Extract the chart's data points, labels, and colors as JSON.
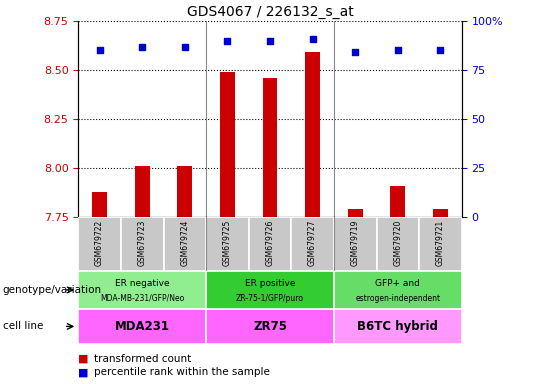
{
  "title": "GDS4067 / 226132_s_at",
  "samples": [
    "GSM679722",
    "GSM679723",
    "GSM679724",
    "GSM679725",
    "GSM679726",
    "GSM679727",
    "GSM679719",
    "GSM679720",
    "GSM679721"
  ],
  "bar_values": [
    7.88,
    8.01,
    8.01,
    8.49,
    8.46,
    8.59,
    7.79,
    7.91,
    7.79
  ],
  "percentile_values": [
    85,
    87,
    87,
    90,
    90,
    91,
    84,
    85,
    85
  ],
  "ylim_left": [
    7.75,
    8.75
  ],
  "ylim_right": [
    0,
    100
  ],
  "yticks_left": [
    7.75,
    8.0,
    8.25,
    8.5,
    8.75
  ],
  "yticks_right": [
    0,
    25,
    50,
    75,
    100
  ],
  "bar_color": "#CC0000",
  "dot_color": "#0000CC",
  "groups": [
    {
      "label_top": "ER negative",
      "label_bot": "MDA-MB-231/GFP/Neo",
      "cell_line": "MDA231",
      "indices": [
        0,
        1,
        2
      ],
      "geno_color": "#90EE90",
      "cell_color": "#FF66FF"
    },
    {
      "label_top": "ER positive",
      "label_bot": "ZR-75-1/GFP/puro",
      "cell_line": "ZR75",
      "indices": [
        3,
        4,
        5
      ],
      "geno_color": "#33CC33",
      "cell_color": "#FF66FF"
    },
    {
      "label_top": "GFP+ and",
      "label_bot": "estrogen-independent",
      "cell_line": "B6TC hybrid",
      "indices": [
        6,
        7,
        8
      ],
      "geno_color": "#66DD66",
      "cell_color": "#FF99FF"
    }
  ],
  "left_axis_color": "#CC0000",
  "right_axis_color": "#0000CC",
  "legend_items": [
    "transformed count",
    "percentile rank within the sample"
  ],
  "baseline": 7.75,
  "group_boundaries": [
    2.5,
    5.5
  ],
  "gray_col_color": "#C8C8C8",
  "separator_color": "#888888"
}
